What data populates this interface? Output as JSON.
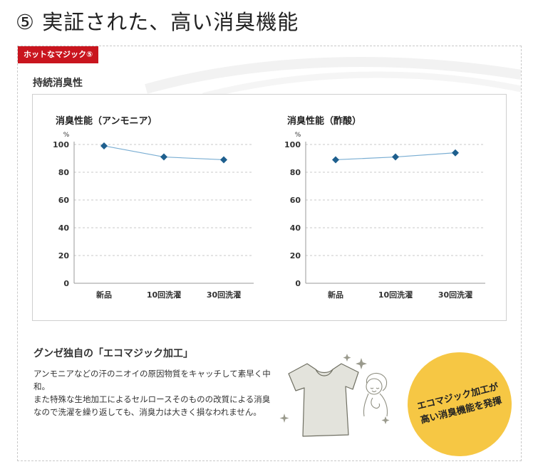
{
  "page_title": "⑤ 実証された、高い消臭機能",
  "badge": "ホットなマジック⑤",
  "sub_heading": "持続消臭性",
  "chart_data": [
    {
      "type": "line",
      "title": "消臭性能（アンモニア）",
      "ylabel": "%",
      "categories": [
        "新品",
        "10回洗濯",
        "30回洗濯"
      ],
      "values": [
        99,
        91,
        89
      ],
      "ylim": [
        0,
        100
      ],
      "yticks": [
        0,
        20,
        40,
        60,
        80,
        100
      ],
      "grid": true,
      "line_color": "#7aaed3",
      "marker_color": "#1e5f8e"
    },
    {
      "type": "line",
      "title": "消臭性能（酢酸）",
      "ylabel": "%",
      "categories": [
        "新品",
        "10回洗濯",
        "30回洗濯"
      ],
      "values": [
        89,
        91,
        94
      ],
      "ylim": [
        0,
        100
      ],
      "yticks": [
        0,
        20,
        40,
        60,
        80,
        100
      ],
      "grid": true,
      "line_color": "#7aaed3",
      "marker_color": "#1e5f8e"
    }
  ],
  "feature": {
    "heading": "グンゼ独自の「エコマジック加工」",
    "body_line1": "アンモニアなどの汗のニオイの原因物質をキャッチして素早く中和。",
    "body_line2": "また特殊な生地加工によるセルロースそのものの改質による消臭なので洗濯を繰り返しても、消臭力は大きく損なわれません。"
  },
  "callout": {
    "line1": "エコマジック加工が",
    "line2": "高い消臭機能を発揮"
  },
  "colors": {
    "badge_bg": "#c9151e",
    "callout_bg": "#f6c744"
  },
  "icons": {
    "illustration": "t-shirt-and-smiling-woman-sparkles-icon"
  }
}
